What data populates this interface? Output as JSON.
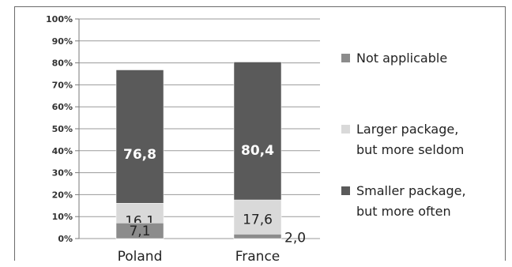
{
  "chart_data": {
    "type": "bar",
    "stacked": true,
    "percent_axis": true,
    "categories": [
      "Poland",
      "France"
    ],
    "series": [
      {
        "name": "Smaller package, but more often",
        "values": [
          76.8,
          80.4
        ],
        "labels": [
          "76,8",
          "80,4"
        ],
        "color": "#5a5a5a",
        "label_color": "#ffffff",
        "label_bold": true
      },
      {
        "name": "Larger package, but more seldom",
        "values": [
          16.1,
          17.6
        ],
        "labels": [
          "16,1",
          "17,6"
        ],
        "color": "#d9d9d9",
        "label_color": "#222222",
        "label_bold": false
      },
      {
        "name": "Not applicable",
        "values": [
          7.1,
          2.0
        ],
        "labels": [
          "7,1",
          "2,0"
        ],
        "color": "#8c8c8c",
        "label_color": "#222222",
        "label_bold": false
      }
    ],
    "y_ticks": [
      "0%",
      "10%",
      "20%",
      "30%",
      "40%",
      "50%",
      "60%",
      "70%",
      "80%",
      "90%",
      "100%"
    ],
    "ylim": [
      0,
      100
    ],
    "grid": true,
    "legend_position": "right",
    "legend_order": [
      "Not applicable",
      "Larger package, but more seldom",
      "Smaller package, but more often"
    ],
    "legend_lines": {
      "Not applicable": [
        "Not applicable"
      ],
      "Larger package, but more seldom": [
        "Larger package,",
        "but more seldom"
      ],
      "Smaller package, but more often": [
        "Smaller package,",
        "but more often"
      ]
    },
    "title": "",
    "xlabel": "",
    "ylabel": ""
  }
}
